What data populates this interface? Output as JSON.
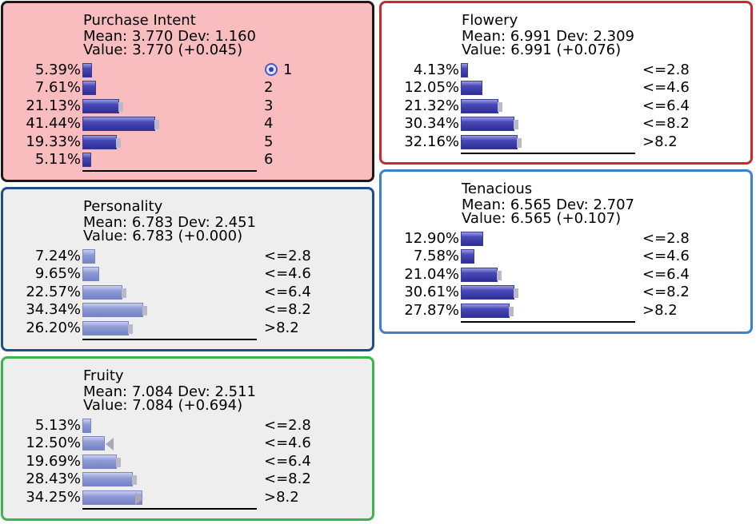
{
  "colors": {
    "purchase_bg": "#f9bcbf",
    "purchase_border": "#1a1a1a",
    "flowery_border": "#cc2a2a",
    "personality_border": "#1f4f8a",
    "tenacious_border": "#3a82cc",
    "fruity_border": "#3fb44a",
    "panel_bg_gray": "#eeeeee",
    "panel_bg_white": "#ffffff"
  },
  "nodes": {
    "purchase": {
      "title": "Purchase Intent",
      "mean": "Mean: 3.770 Dev: 1.160",
      "value": "Value: 3.770 (+0.045)",
      "rows": [
        {
          "pct": "5.39%",
          "value": 5.39,
          "state": "1",
          "icon": "target-icon"
        },
        {
          "pct": "7.61%",
          "value": 7.61,
          "state": "2"
        },
        {
          "pct": "21.13%",
          "value": 21.13,
          "state": "3"
        },
        {
          "pct": "41.44%",
          "value": 41.44,
          "state": "4"
        },
        {
          "pct": "19.33%",
          "value": 19.33,
          "state": "5"
        },
        {
          "pct": "5.11%",
          "value": 5.11,
          "state": "6"
        }
      ]
    },
    "flowery": {
      "title": "Flowery",
      "mean": "Mean: 6.991 Dev: 2.309",
      "value": "Value: 6.991 (+0.076)",
      "rows": [
        {
          "pct": "4.13%",
          "value": 4.13,
          "state": "<=2.8"
        },
        {
          "pct": "12.05%",
          "value": 12.05,
          "state": "<=4.6"
        },
        {
          "pct": "21.32%",
          "value": 21.32,
          "state": "<=6.4"
        },
        {
          "pct": "30.34%",
          "value": 30.34,
          "state": "<=8.2"
        },
        {
          "pct": "32.16%",
          "value": 32.16,
          "state": ">8.2"
        }
      ]
    },
    "personality": {
      "title": "Personality",
      "mean": "Mean: 6.783 Dev: 2.451",
      "value": "Value: 6.783 (+0.000)",
      "rows": [
        {
          "pct": "7.24%",
          "value": 7.24,
          "state": "<=2.8"
        },
        {
          "pct": "9.65%",
          "value": 9.65,
          "state": "<=4.6"
        },
        {
          "pct": "22.57%",
          "value": 22.57,
          "state": "<=6.4"
        },
        {
          "pct": "34.34%",
          "value": 34.34,
          "state": "<=8.2"
        },
        {
          "pct": "26.20%",
          "value": 26.2,
          "state": ">8.2"
        }
      ]
    },
    "tenacious": {
      "title": "Tenacious",
      "mean": "Mean: 6.565 Dev: 2.707",
      "value": "Value: 6.565 (+0.107)",
      "rows": [
        {
          "pct": "12.90%",
          "value": 12.9,
          "state": "<=2.8"
        },
        {
          "pct": "7.58%",
          "value": 7.58,
          "state": "<=4.6"
        },
        {
          "pct": "21.04%",
          "value": 21.04,
          "state": "<=6.4"
        },
        {
          "pct": "30.61%",
          "value": 30.61,
          "state": "<=8.2"
        },
        {
          "pct": "27.87%",
          "value": 27.87,
          "state": ">8.2"
        }
      ]
    },
    "fruity": {
      "title": "Fruity",
      "mean": "Mean: 7.084 Dev: 2.511",
      "value": "Value: 7.084 (+0.694)",
      "rows": [
        {
          "pct": "5.13%",
          "value": 5.13,
          "state": "<=2.8"
        },
        {
          "pct": "12.50%",
          "value": 12.5,
          "state": "<=4.6",
          "arrow": "left"
        },
        {
          "pct": "19.69%",
          "value": 19.69,
          "state": "<=6.4"
        },
        {
          "pct": "28.43%",
          "value": 28.43,
          "state": "<=8.2"
        },
        {
          "pct": "34.25%",
          "value": 34.25,
          "state": ">8.2",
          "arrow": "right"
        }
      ]
    }
  }
}
